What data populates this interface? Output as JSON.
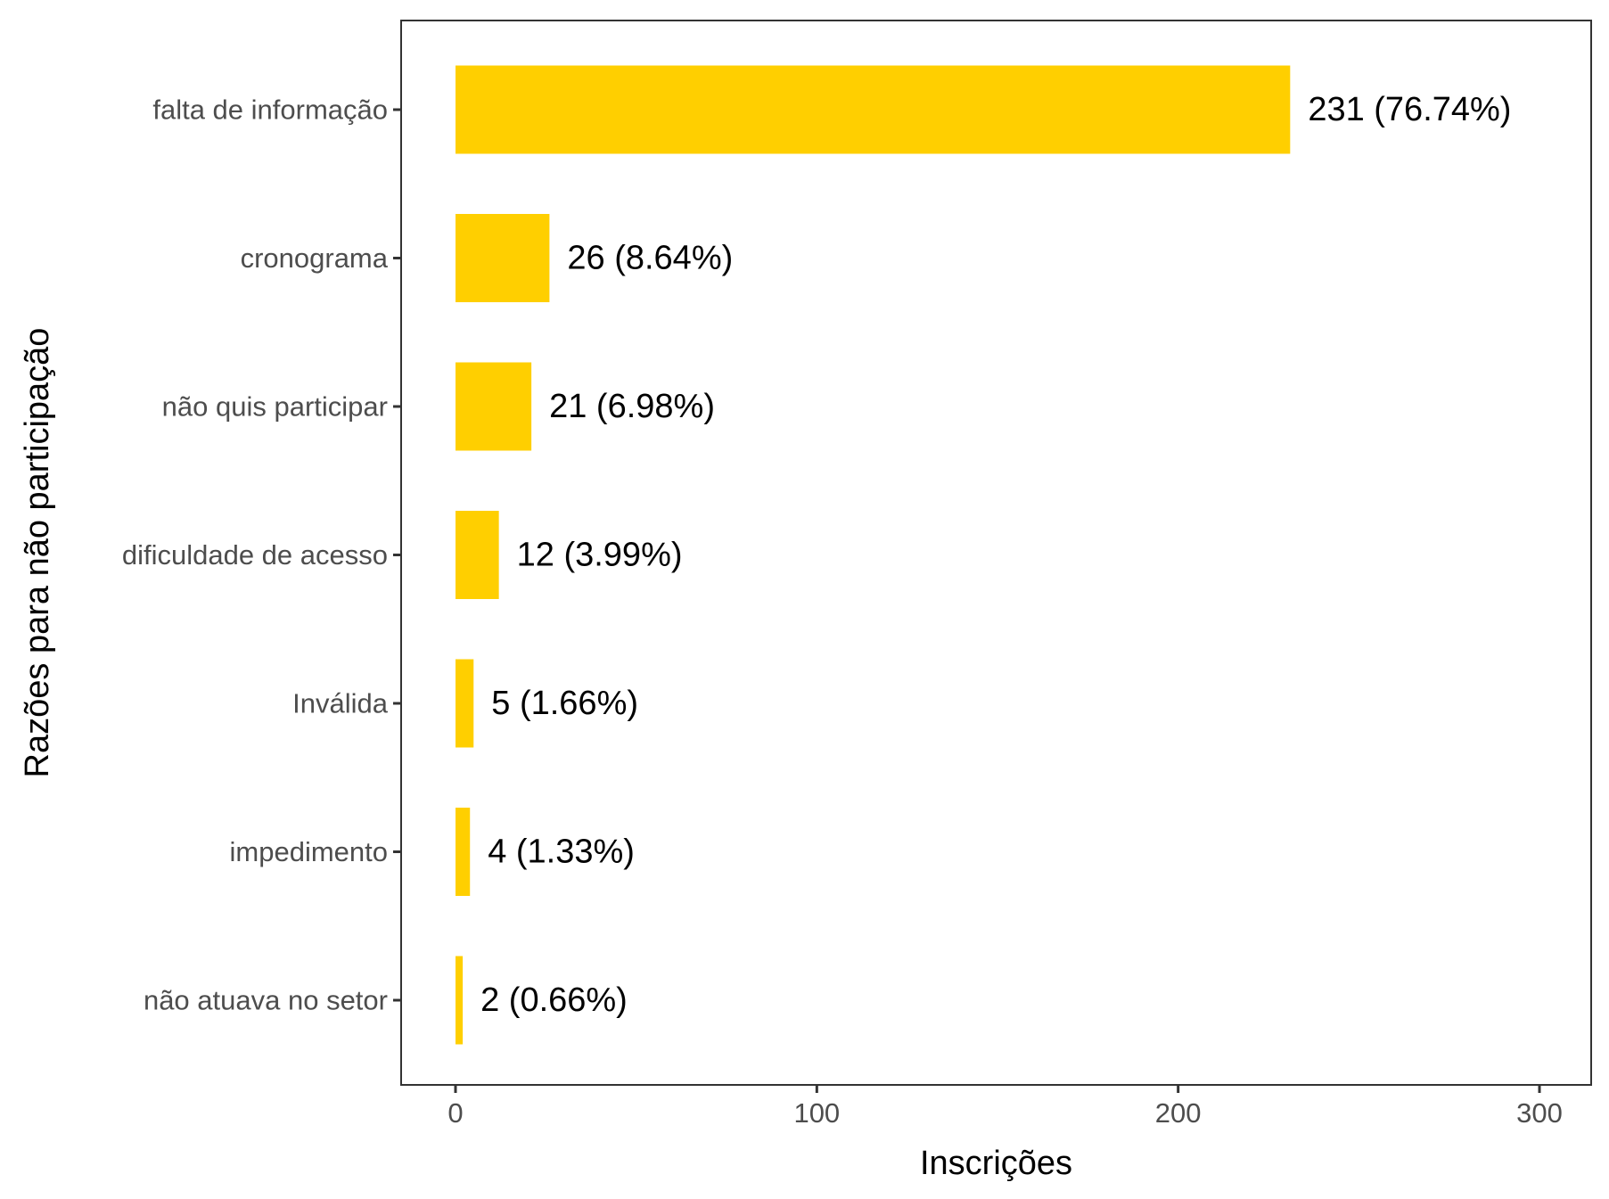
{
  "chart_data": {
    "type": "bar",
    "orientation": "horizontal",
    "title": "",
    "xlabel": "Inscrições",
    "ylabel": "Razões para não participação",
    "xlim": [
      0,
      300
    ],
    "x_ticks": [
      0,
      100,
      200,
      300
    ],
    "categories": [
      "falta de informação",
      "cronograma",
      "não quis participar",
      "dificuldade de acesso",
      "Inválida",
      "impedimento",
      "não atuava no setor"
    ],
    "values": [
      231,
      26,
      21,
      12,
      5,
      4,
      2
    ],
    "data_labels": [
      "231 (76.74%)",
      "26 (8.64%)",
      "21 (6.98%)",
      "12 (3.99%)",
      "5 (1.66%)",
      "4 (1.33%)",
      "2 (0.66%)"
    ],
    "bar_color": "#FFCF00",
    "grid": false,
    "legend": "none"
  }
}
